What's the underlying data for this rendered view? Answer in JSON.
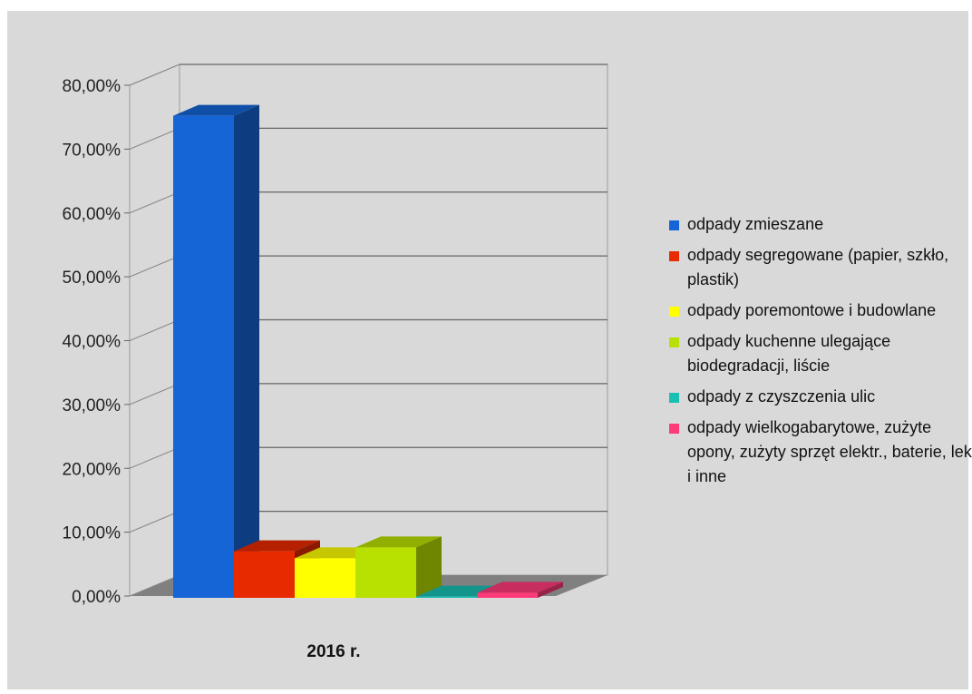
{
  "chart_data": {
    "type": "bar",
    "categories": [
      "2016 r."
    ],
    "series": [
      {
        "name": "odpady zmieszane",
        "values": [
          75.5
        ],
        "color": "#1565d6"
      },
      {
        "name": "odpady segregowane (papier, szkło, plastik)",
        "values": [
          7.3
        ],
        "color": "#e82a00"
      },
      {
        "name": "odpady poremontowe i budowlane",
        "values": [
          6.2
        ],
        "color": "#ffff00"
      },
      {
        "name": "odpady kuchenne ulegające biodegradacji, liście",
        "values": [
          7.9
        ],
        "color": "#b8e000"
      },
      {
        "name": "odpady z czyszczenia ulic",
        "values": [
          0.2
        ],
        "color": "#1abfb4"
      },
      {
        "name": "odpady wielkogabarytowe, zużyte opony, zużyty sprzęt elektr., baterie, leki i inne",
        "values": [
          0.8
        ],
        "color": "#ff3a78"
      }
    ],
    "ylim": [
      0,
      80
    ],
    "y_ticks": [
      "0,00%",
      "10,00%",
      "20,00%",
      "30,00%",
      "40,00%",
      "50,00%",
      "60,00%",
      "70,00%",
      "80,00%"
    ],
    "grid": true,
    "legend_position": "right",
    "title": "",
    "xlabel": "",
    "ylabel": ""
  }
}
